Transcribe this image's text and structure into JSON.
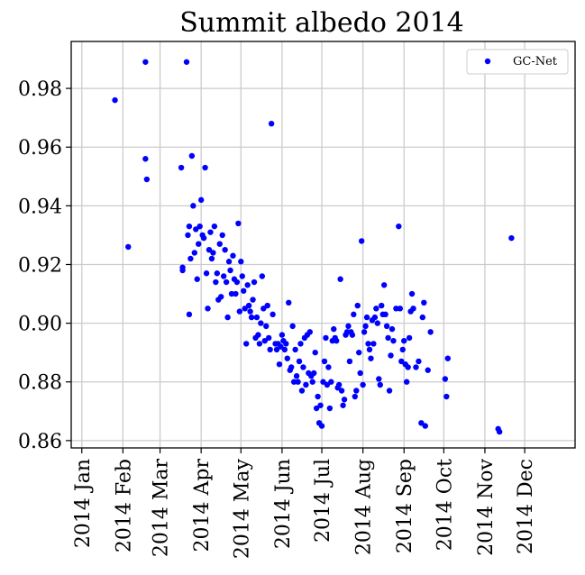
{
  "chart_data": {
    "type": "scatter",
    "title": "Summit albedo 2014",
    "xlabel": "",
    "ylabel": "",
    "legend": {
      "placement": "top-right",
      "entries": [
        "GC-Net"
      ]
    },
    "grid": true,
    "xlim": [
      "2013-12-24",
      "2015-01-08"
    ],
    "ylim": [
      0.8575,
      0.996
    ],
    "x_ticks": [
      {
        "date": "2014-01-01",
        "label": "2014 Jan"
      },
      {
        "date": "2014-02-01",
        "label": "2014 Feb"
      },
      {
        "date": "2014-03-01",
        "label": "2014 Mar"
      },
      {
        "date": "2014-04-01",
        "label": "2014 Apr"
      },
      {
        "date": "2014-05-01",
        "label": "2014 May"
      },
      {
        "date": "2014-06-01",
        "label": "2014 Jun"
      },
      {
        "date": "2014-07-01",
        "label": "2014 Jul"
      },
      {
        "date": "2014-08-01",
        "label": "2014 Aug"
      },
      {
        "date": "2014-09-01",
        "label": "2014 Sep"
      },
      {
        "date": "2014-10-01",
        "label": "2014 Oct"
      },
      {
        "date": "2014-11-01",
        "label": "2014 Nov"
      },
      {
        "date": "2014-12-01",
        "label": "2014 Dec"
      }
    ],
    "y_ticks": [
      {
        "value": 0.86,
        "label": "0.86"
      },
      {
        "value": 0.88,
        "label": "0.88"
      },
      {
        "value": 0.9,
        "label": "0.90"
      },
      {
        "value": 0.92,
        "label": "0.92"
      },
      {
        "value": 0.94,
        "label": "0.94"
      },
      {
        "value": 0.96,
        "label": "0.96"
      },
      {
        "value": 0.98,
        "label": "0.98"
      }
    ],
    "series": [
      {
        "name": "GC-Net",
        "color": "#0000ff",
        "marker": "circle",
        "points": [
          [
            "2014-01-26",
            0.976
          ],
          [
            "2014-02-05",
            0.926
          ],
          [
            "2014-02-18",
            0.989
          ],
          [
            "2014-02-18",
            0.956
          ],
          [
            "2014-02-19",
            0.949
          ],
          [
            "2014-03-17",
            0.953
          ],
          [
            "2014-03-18",
            0.918
          ],
          [
            "2014-03-18",
            0.919
          ],
          [
            "2014-03-21",
            0.989
          ],
          [
            "2014-03-22",
            0.93
          ],
          [
            "2014-03-23",
            0.903
          ],
          [
            "2014-03-23",
            0.933
          ],
          [
            "2014-03-24",
            0.922
          ],
          [
            "2014-03-25",
            0.957
          ],
          [
            "2014-03-26",
            0.94
          ],
          [
            "2014-03-27",
            0.924
          ],
          [
            "2014-03-28",
            0.932
          ],
          [
            "2014-03-29",
            0.915
          ],
          [
            "2014-03-30",
            0.927
          ],
          [
            "2014-03-31",
            0.933
          ],
          [
            "2014-04-01",
            0.942
          ],
          [
            "2014-04-02",
            0.93
          ],
          [
            "2014-04-03",
            0.929
          ],
          [
            "2014-04-04",
            0.953
          ],
          [
            "2014-04-05",
            0.917
          ],
          [
            "2014-04-06",
            0.905
          ],
          [
            "2014-04-07",
            0.925
          ],
          [
            "2014-04-08",
            0.931
          ],
          [
            "2014-04-09",
            0.922
          ],
          [
            "2014-04-10",
            0.924
          ],
          [
            "2014-04-11",
            0.933
          ],
          [
            "2014-04-12",
            0.914
          ],
          [
            "2014-04-13",
            0.917
          ],
          [
            "2014-04-14",
            0.908
          ],
          [
            "2014-04-15",
            0.927
          ],
          [
            "2014-04-16",
            0.909
          ],
          [
            "2014-04-17",
            0.93
          ],
          [
            "2014-04-18",
            0.916
          ],
          [
            "2014-04-19",
            0.925
          ],
          [
            "2014-04-20",
            0.914
          ],
          [
            "2014-04-21",
            0.902
          ],
          [
            "2014-04-22",
            0.921
          ],
          [
            "2014-04-23",
            0.918
          ],
          [
            "2014-04-24",
            0.91
          ],
          [
            "2014-04-25",
            0.923
          ],
          [
            "2014-04-26",
            0.915
          ],
          [
            "2014-04-27",
            0.91
          ],
          [
            "2014-04-28",
            0.914
          ],
          [
            "2014-04-29",
            0.934
          ],
          [
            "2014-04-30",
            0.904
          ],
          [
            "2014-05-01",
            0.921
          ],
          [
            "2014-05-02",
            0.916
          ],
          [
            "2014-05-03",
            0.911
          ],
          [
            "2014-05-04",
            0.905
          ],
          [
            "2014-05-05",
            0.893
          ],
          [
            "2014-05-06",
            0.913
          ],
          [
            "2014-05-07",
            0.906
          ],
          [
            "2014-05-08",
            0.904
          ],
          [
            "2014-05-09",
            0.902
          ],
          [
            "2014-05-10",
            0.908
          ],
          [
            "2014-05-11",
            0.914
          ],
          [
            "2014-05-12",
            0.895
          ],
          [
            "2014-05-13",
            0.902
          ],
          [
            "2014-05-14",
            0.896
          ],
          [
            "2014-05-15",
            0.893
          ],
          [
            "2014-05-16",
            0.9
          ],
          [
            "2014-05-17",
            0.916
          ],
          [
            "2014-05-18",
            0.905
          ],
          [
            "2014-05-19",
            0.894
          ],
          [
            "2014-05-20",
            0.899
          ],
          [
            "2014-05-21",
            0.906
          ],
          [
            "2014-05-22",
            0.895
          ],
          [
            "2014-05-23",
            0.891
          ],
          [
            "2014-05-24",
            0.968
          ],
          [
            "2014-05-25",
            0.903
          ],
          [
            "2014-05-27",
            0.893
          ],
          [
            "2014-05-28",
            0.891
          ],
          [
            "2014-05-29",
            0.893
          ],
          [
            "2014-05-30",
            0.886
          ],
          [
            "2014-05-31",
            0.892
          ],
          [
            "2014-06-01",
            0.896
          ],
          [
            "2014-06-02",
            0.894
          ],
          [
            "2014-06-03",
            0.891
          ],
          [
            "2014-06-04",
            0.893
          ],
          [
            "2014-06-05",
            0.888
          ],
          [
            "2014-06-06",
            0.907
          ],
          [
            "2014-06-07",
            0.884
          ],
          [
            "2014-06-08",
            0.885
          ],
          [
            "2014-06-09",
            0.899
          ],
          [
            "2014-06-10",
            0.88
          ],
          [
            "2014-06-11",
            0.891
          ],
          [
            "2014-06-12",
            0.882
          ],
          [
            "2014-06-13",
            0.88
          ],
          [
            "2014-06-14",
            0.887
          ],
          [
            "2014-06-15",
            0.893
          ],
          [
            "2014-06-16",
            0.877
          ],
          [
            "2014-06-17",
            0.885
          ],
          [
            "2014-06-18",
            0.895
          ],
          [
            "2014-06-19",
            0.879
          ],
          [
            "2014-06-20",
            0.896
          ],
          [
            "2014-06-21",
            0.883
          ],
          [
            "2014-06-22",
            0.897
          ],
          [
            "2014-06-23",
            0.882
          ],
          [
            "2014-06-24",
            0.88
          ],
          [
            "2014-06-25",
            0.883
          ],
          [
            "2014-06-26",
            0.89
          ],
          [
            "2014-06-27",
            0.871
          ],
          [
            "2014-06-28",
            0.875
          ],
          [
            "2014-06-29",
            0.866
          ],
          [
            "2014-06-30",
            0.872
          ],
          [
            "2014-07-01",
            0.865
          ],
          [
            "2014-07-02",
            0.88
          ],
          [
            "2014-07-03",
            0.887
          ],
          [
            "2014-07-04",
            0.895
          ],
          [
            "2014-07-05",
            0.879
          ],
          [
            "2014-07-06",
            0.885
          ],
          [
            "2014-07-07",
            0.871
          ],
          [
            "2014-07-08",
            0.88
          ],
          [
            "2014-07-09",
            0.894
          ],
          [
            "2014-07-10",
            0.898
          ],
          [
            "2014-07-11",
            0.895
          ],
          [
            "2014-07-12",
            0.894
          ],
          [
            "2014-07-13",
            0.878
          ],
          [
            "2014-07-14",
            0.879
          ],
          [
            "2014-07-15",
            0.915
          ],
          [
            "2014-07-16",
            0.877
          ],
          [
            "2014-07-17",
            0.872
          ],
          [
            "2014-07-18",
            0.874
          ],
          [
            "2014-07-19",
            0.896
          ],
          [
            "2014-07-20",
            0.897
          ],
          [
            "2014-07-21",
            0.899
          ],
          [
            "2014-07-22",
            0.887
          ],
          [
            "2014-07-23",
            0.897
          ],
          [
            "2014-07-24",
            0.896
          ],
          [
            "2014-07-25",
            0.903
          ],
          [
            "2014-07-26",
            0.875
          ],
          [
            "2014-07-27",
            0.877
          ],
          [
            "2014-07-28",
            0.906
          ],
          [
            "2014-07-29",
            0.89
          ],
          [
            "2014-07-30",
            0.883
          ],
          [
            "2014-07-31",
            0.928
          ],
          [
            "2014-08-01",
            0.879
          ],
          [
            "2014-08-02",
            0.897
          ],
          [
            "2014-08-03",
            0.899
          ],
          [
            "2014-08-04",
            0.902
          ],
          [
            "2014-08-05",
            0.893
          ],
          [
            "2014-08-06",
            0.891
          ],
          [
            "2014-08-07",
            0.888
          ],
          [
            "2014-08-08",
            0.901
          ],
          [
            "2014-08-09",
            0.893
          ],
          [
            "2014-08-10",
            0.902
          ],
          [
            "2014-08-11",
            0.905
          ],
          [
            "2014-08-12",
            0.9
          ],
          [
            "2014-08-13",
            0.881
          ],
          [
            "2014-08-14",
            0.879
          ],
          [
            "2014-08-15",
            0.906
          ],
          [
            "2014-08-16",
            0.903
          ],
          [
            "2014-08-17",
            0.913
          ],
          [
            "2014-08-18",
            0.903
          ],
          [
            "2014-08-19",
            0.899
          ],
          [
            "2014-08-20",
            0.895
          ],
          [
            "2014-08-21",
            0.877
          ],
          [
            "2014-08-22",
            0.889
          ],
          [
            "2014-08-23",
            0.898
          ],
          [
            "2014-08-24",
            0.894
          ],
          [
            "2014-08-26",
            0.905
          ],
          [
            "2014-08-28",
            0.933
          ],
          [
            "2014-08-29",
            0.905
          ],
          [
            "2014-08-30",
            0.887
          ],
          [
            "2014-08-31",
            0.891
          ],
          [
            "2014-09-01",
            0.894
          ],
          [
            "2014-09-02",
            0.886
          ],
          [
            "2014-09-03",
            0.88
          ],
          [
            "2014-09-04",
            0.885
          ],
          [
            "2014-09-05",
            0.895
          ],
          [
            "2014-09-06",
            0.904
          ],
          [
            "2014-09-07",
            0.91
          ],
          [
            "2014-09-08",
            0.905
          ],
          [
            "2014-09-10",
            0.885
          ],
          [
            "2014-09-12",
            0.887
          ],
          [
            "2014-09-14",
            0.866
          ],
          [
            "2014-09-15",
            0.902
          ],
          [
            "2014-09-16",
            0.907
          ],
          [
            "2014-09-17",
            0.865
          ],
          [
            "2014-09-19",
            0.884
          ],
          [
            "2014-09-21",
            0.897
          ],
          [
            "2014-10-02",
            0.881
          ],
          [
            "2014-10-03",
            0.875
          ],
          [
            "2014-10-04",
            0.888
          ],
          [
            "2014-11-11",
            0.864
          ],
          [
            "2014-11-12",
            0.863
          ],
          [
            "2014-11-21",
            0.929
          ]
        ]
      }
    ]
  }
}
